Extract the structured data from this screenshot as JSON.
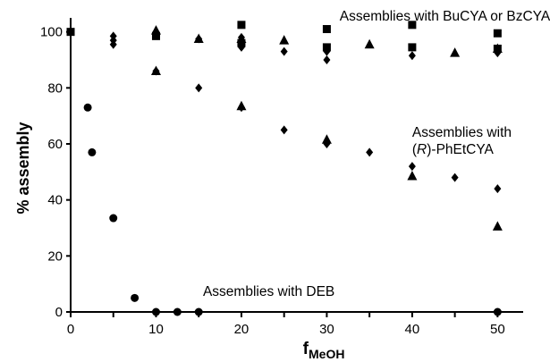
{
  "chart_data": {
    "type": "scatter",
    "xlabel": "f",
    "xlabel_sub": "MeOH",
    "ylabel": "% assembly",
    "xlim": [
      0,
      53
    ],
    "ylim": [
      0,
      105
    ],
    "x_ticks": [
      0,
      10,
      20,
      30,
      40,
      50
    ],
    "y_ticks": [
      0,
      20,
      40,
      60,
      80,
      100
    ],
    "grid": false,
    "legend": "none",
    "marker_color": "#000000",
    "series": [
      {
        "marker": "square",
        "points": [
          [
            0,
            100
          ],
          [
            10,
            98.5
          ],
          [
            20,
            102.5
          ],
          [
            20,
            96
          ],
          [
            30,
            101
          ],
          [
            30,
            94.5
          ],
          [
            40,
            102.5
          ],
          [
            40,
            94.5
          ],
          [
            50,
            99.5
          ],
          [
            50,
            94
          ]
        ]
      },
      {
        "marker": "diamond",
        "points": [
          [
            5,
            98.5
          ],
          [
            5,
            97
          ],
          [
            5,
            95.5
          ],
          [
            10,
            100
          ],
          [
            10,
            86
          ],
          [
            15,
            97.5
          ],
          [
            15,
            80
          ],
          [
            20,
            98
          ],
          [
            20,
            94.5
          ],
          [
            20,
            73
          ],
          [
            25,
            93
          ],
          [
            25,
            65
          ],
          [
            30,
            93
          ],
          [
            30,
            90
          ],
          [
            30,
            60
          ],
          [
            35,
            57
          ],
          [
            40,
            91.5
          ],
          [
            40,
            52
          ],
          [
            45,
            48
          ],
          [
            50,
            92.5
          ],
          [
            50,
            44
          ]
        ]
      },
      {
        "marker": "triangle",
        "points": [
          [
            10,
            100.5
          ],
          [
            10,
            86
          ],
          [
            15,
            97.5
          ],
          [
            20,
            97.5
          ],
          [
            20,
            73.5
          ],
          [
            25,
            97
          ],
          [
            30,
            61.5
          ],
          [
            35,
            95.5
          ],
          [
            40,
            48.5
          ],
          [
            45,
            92.5
          ],
          [
            50,
            94
          ],
          [
            50,
            30.5
          ]
        ]
      },
      {
        "marker": "circle",
        "points": [
          [
            2,
            73
          ],
          [
            2.5,
            57
          ],
          [
            5,
            33.5
          ],
          [
            7.5,
            5
          ],
          [
            10,
            0
          ],
          [
            12.5,
            0
          ],
          [
            15,
            0
          ],
          [
            50,
            0
          ]
        ]
      }
    ],
    "annotations": [
      {
        "text": "Assemblies with BuCYA or BzCYA",
        "x": 31.5,
        "y": 104
      },
      {
        "text_pre": "Assemblies with",
        "text_italic": "R",
        "text_post": "-PhEtCYA",
        "x": 40,
        "y": 62.5
      },
      {
        "text": "Assemblies with DEB",
        "x": 15.5,
        "y": 5.7
      }
    ]
  }
}
